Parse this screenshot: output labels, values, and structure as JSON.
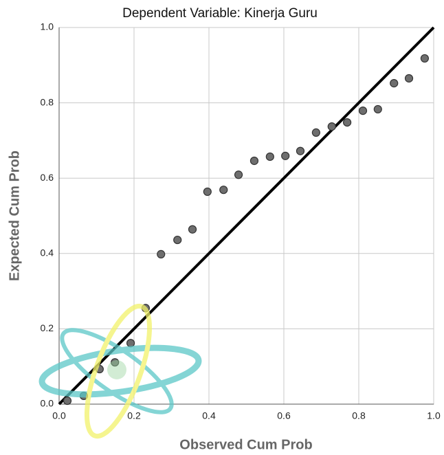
{
  "chart_data": {
    "type": "scatter",
    "title": "Dependent Variable: Kinerja Guru",
    "x_label": "Observed Cum Prob",
    "y_label": "Expected Cum Prob",
    "x": [
      0.022,
      0.066,
      0.108,
      0.149,
      0.191,
      0.231,
      0.272,
      0.316,
      0.356,
      0.396,
      0.439,
      0.479,
      0.521,
      0.563,
      0.604,
      0.644,
      0.686,
      0.728,
      0.769,
      0.811,
      0.851,
      0.894,
      0.934,
      0.976
    ],
    "values": [
      0.009,
      0.022,
      0.093,
      0.111,
      0.162,
      0.255,
      0.398,
      0.436,
      0.464,
      0.564,
      0.569,
      0.609,
      0.646,
      0.657,
      0.659,
      0.672,
      0.721,
      0.737,
      0.748,
      0.779,
      0.783,
      0.852,
      0.865,
      0.918
    ],
    "color": "#6e6e6e",
    "xlim": [
      0,
      1
    ],
    "ylim": [
      0,
      1
    ],
    "xticks": [
      {
        "value": 0,
        "label": "0.0"
      },
      0.2,
      0.4,
      0.6,
      0.8,
      {
        "value": 1,
        "label": "1.0"
      }
    ],
    "yticks": [
      {
        "value": 0,
        "label": "0.0"
      },
      0.2,
      0.4,
      0.6,
      0.8,
      {
        "value": 1,
        "label": "1.0"
      }
    ],
    "grid": true,
    "reference_line": true
  }
}
